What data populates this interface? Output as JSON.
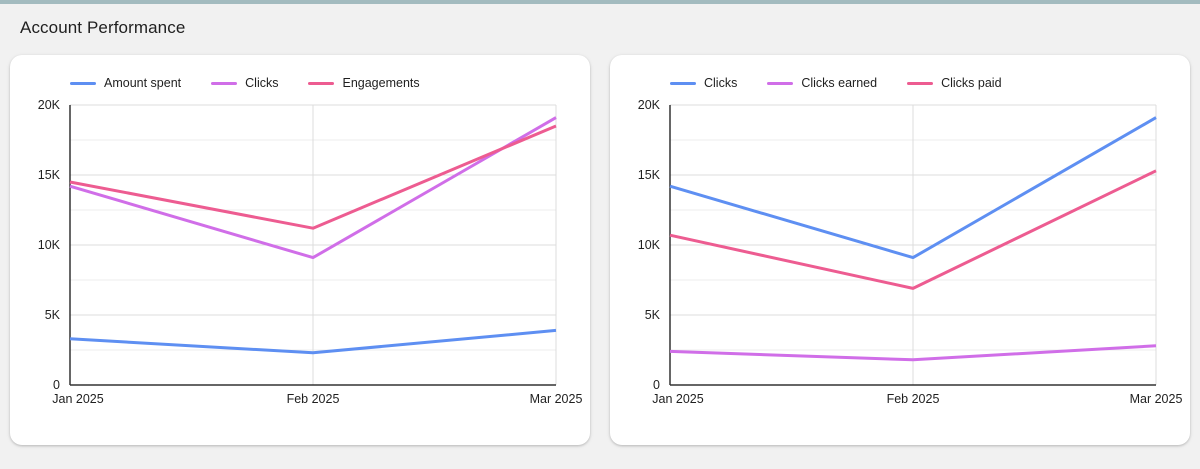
{
  "page": {
    "title": "Account Performance"
  },
  "theme": {
    "top_bar_color": "#a3bbbf",
    "page_background": "#f1f1f1",
    "card_background": "#ffffff",
    "axis_color": "#333333",
    "grid_major_color": "#dcdcdc",
    "grid_minor_color": "#ececec",
    "label_color": "#1f1f1f"
  },
  "chart_data": [
    {
      "type": "line",
      "title": "",
      "categories": [
        "Jan 2025",
        "Feb 2025",
        "Mar 2025"
      ],
      "series": [
        {
          "name": "Amount spent",
          "color": "#5e8ff2",
          "values": [
            3300,
            2300,
            3900
          ]
        },
        {
          "name": "Clicks",
          "color": "#d06ee8",
          "values": [
            14200,
            9100,
            19100
          ]
        },
        {
          "name": "Engagements",
          "color": "#ed5c91",
          "values": [
            14500,
            11200,
            18500
          ]
        }
      ],
      "ylim": [
        0,
        20000
      ],
      "y_ticks": [
        {
          "value": 0,
          "label": "0"
        },
        {
          "value": 5000,
          "label": "5K"
        },
        {
          "value": 10000,
          "label": "10K"
        },
        {
          "value": 15000,
          "label": "15K"
        },
        {
          "value": 20000,
          "label": "20K"
        }
      ],
      "minor_grid_step": 2500,
      "grid": true,
      "legend_position": "top"
    },
    {
      "type": "line",
      "title": "",
      "categories": [
        "Jan 2025",
        "Feb 2025",
        "Mar 2025"
      ],
      "series": [
        {
          "name": "Clicks",
          "color": "#5e8ff2",
          "values": [
            14200,
            9100,
            19100
          ]
        },
        {
          "name": "Clicks earned",
          "color": "#d06ee8",
          "values": [
            2400,
            1800,
            2800
          ]
        },
        {
          "name": "Clicks paid",
          "color": "#ed5c91",
          "values": [
            10700,
            6900,
            15300
          ]
        }
      ],
      "ylim": [
        0,
        20000
      ],
      "y_ticks": [
        {
          "value": 0,
          "label": "0"
        },
        {
          "value": 5000,
          "label": "5K"
        },
        {
          "value": 10000,
          "label": "10K"
        },
        {
          "value": 15000,
          "label": "15K"
        },
        {
          "value": 20000,
          "label": "20K"
        }
      ],
      "minor_grid_step": 2500,
      "grid": true,
      "legend_position": "top"
    }
  ]
}
